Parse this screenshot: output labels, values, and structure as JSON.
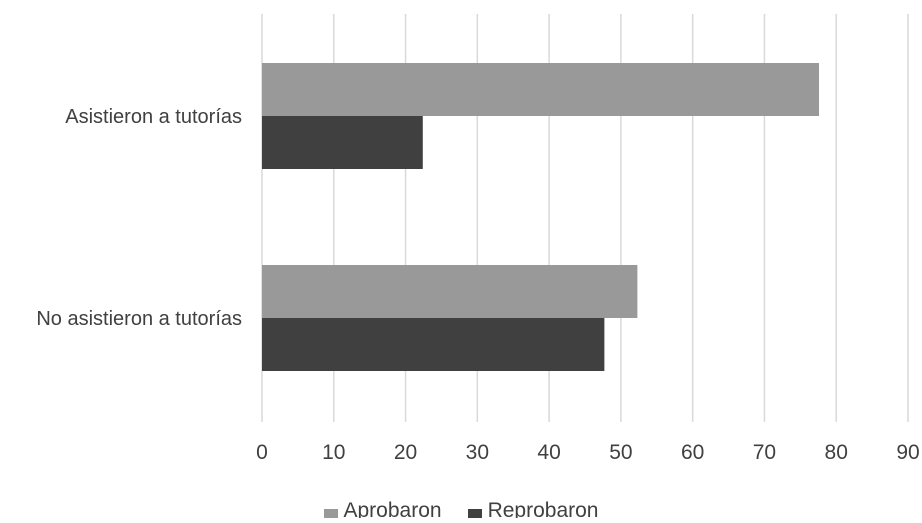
{
  "chart_data": {
    "type": "bar",
    "orientation": "horizontal",
    "title": "",
    "xlabel": "",
    "ylabel": "",
    "categories": [
      "Asistieron a tutorías",
      "No asistieron a tutorías"
    ],
    "series": [
      {
        "name": "Aprobaron",
        "color": "#999999",
        "values": [
          77.6,
          52.3
        ]
      },
      {
        "name": "Reprobaron",
        "color": "#404040",
        "values": [
          22.4,
          47.7
        ]
      }
    ],
    "xlim": [
      0,
      90
    ],
    "xticks": [
      0,
      10,
      20,
      30,
      40,
      50,
      60,
      70,
      80,
      90
    ],
    "grid": "vertical",
    "legend_position": "bottom"
  }
}
